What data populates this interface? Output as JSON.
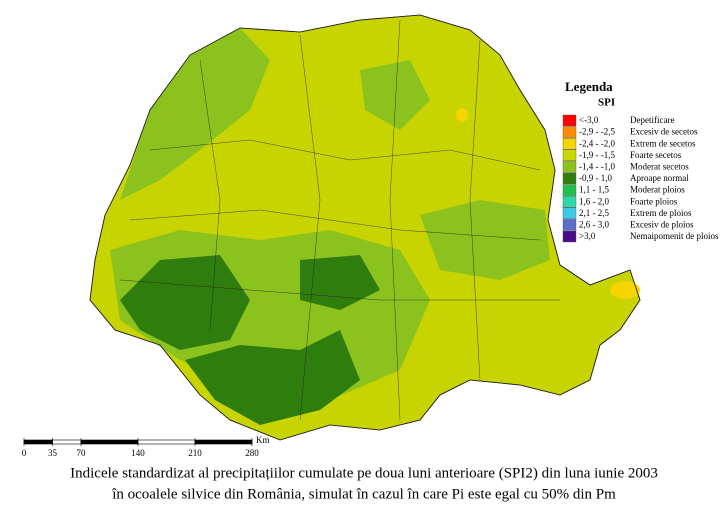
{
  "legend": {
    "title": "Legenda",
    "subtitle": "SPI",
    "items": [
      {
        "range": "<-3,0",
        "label": "Depetificare",
        "color": "#ff0000"
      },
      {
        "range": "-2,9 - -2,5",
        "label": "Excesiv de secetos",
        "color": "#ff8c00"
      },
      {
        "range": "-2,4 - -2,0",
        "label": "Extrem de secetos",
        "color": "#f5d400"
      },
      {
        "range": "-1,9 - -1,5",
        "label": "Foarte secetos",
        "color": "#c8d800"
      },
      {
        "range": "-1,4 - -1,0",
        "label": "Moderat secetos",
        "color": "#8cc21e"
      },
      {
        "range": "-0,9 - 1,0",
        "label": "Aproape normal",
        "color": "#2f7d0c"
      },
      {
        "range": "1,1 - 1,5",
        "label": "Moderat ploios",
        "color": "#22c04a"
      },
      {
        "range": "1,6 - 2,0",
        "label": "Foarte ploios",
        "color": "#2ed8a8"
      },
      {
        "range": "2,1 - 2,5",
        "label": "Extrem de ploios",
        "color": "#40c8e8"
      },
      {
        "range": "2,6 - 3,0",
        "label": "Excesiv de ploios",
        "color": "#5a6ec8"
      },
      {
        "range": ">3,0",
        "label": "Nemaipomenit de ploios",
        "color": "#4b0a8a"
      }
    ]
  },
  "scale": {
    "ticks": [
      0,
      35,
      70,
      140,
      210,
      280
    ],
    "unit": "Km"
  },
  "caption": [
    "Indicele standardizat al precipitațiilor cumulate pe doua luni anterioare (SPI2) din luna iunie 2003",
    "în ocoalele silvice din România, simulat în cazul în care Pi este egal cu  50% din Pm"
  ]
}
